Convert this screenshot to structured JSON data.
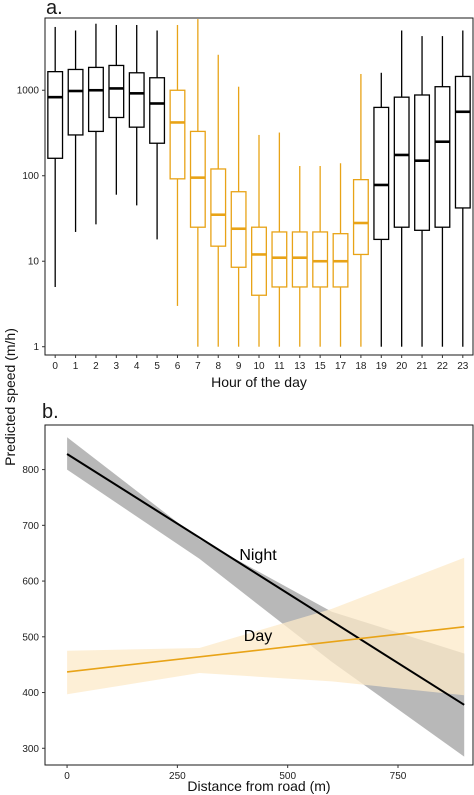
{
  "shared": {
    "ylabel": "Predicted speed (m/h)"
  },
  "chart_data": [
    {
      "panel": "a.",
      "type": "box",
      "xlabel": "Hour of the day",
      "yscale": "log",
      "ylim": [
        0.8,
        7000
      ],
      "yticks": [
        1,
        10,
        100,
        1000
      ],
      "ytick_labels": [
        "1",
        "10",
        "100",
        "1000"
      ],
      "colors": {
        "night": "#000000",
        "day": "#E8A317"
      },
      "boxes": [
        {
          "hour": "0",
          "period": "night",
          "min": 5,
          "q1": 160,
          "median": 830,
          "q3": 1650,
          "max": 5500
        },
        {
          "hour": "1",
          "period": "night",
          "min": 22,
          "q1": 300,
          "median": 980,
          "q3": 1750,
          "max": 5000
        },
        {
          "hour": "2",
          "period": "night",
          "min": 27,
          "q1": 330,
          "median": 1000,
          "q3": 1850,
          "max": 6000
        },
        {
          "hour": "3",
          "period": "night",
          "min": 60,
          "q1": 480,
          "median": 1050,
          "q3": 1950,
          "max": 5800
        },
        {
          "hour": "4",
          "period": "night",
          "min": 45,
          "q1": 370,
          "median": 920,
          "q3": 1600,
          "max": 5800
        },
        {
          "hour": "5",
          "period": "night",
          "min": 18,
          "q1": 240,
          "median": 700,
          "q3": 1400,
          "max": 5000
        },
        {
          "hour": "6",
          "period": "day",
          "min": 3,
          "q1": 92,
          "median": 420,
          "q3": 1000,
          "max": 5800
        },
        {
          "hour": "7",
          "period": "day",
          "min": 1,
          "q1": 25,
          "median": 95,
          "q3": 330,
          "max": 6800
        },
        {
          "hour": "8",
          "period": "day",
          "min": 1,
          "q1": 15,
          "median": 35,
          "q3": 120,
          "max": 2600
        },
        {
          "hour": "9",
          "period": "day",
          "min": 1,
          "q1": 8.5,
          "median": 24,
          "q3": 65,
          "max": 1100
        },
        {
          "hour": "10",
          "period": "day",
          "min": 1,
          "q1": 4,
          "median": 12,
          "q3": 25,
          "max": 300
        },
        {
          "hour": "11",
          "period": "day",
          "min": 1,
          "q1": 5,
          "median": 11,
          "q3": 22,
          "max": 320
        },
        {
          "hour": "13",
          "period": "day",
          "min": 1,
          "q1": 5,
          "median": 11,
          "q3": 22,
          "max": 130
        },
        {
          "hour": "15",
          "period": "day",
          "min": 1,
          "q1": 5,
          "median": 10,
          "q3": 22,
          "max": 130
        },
        {
          "hour": "17",
          "period": "day",
          "min": 1,
          "q1": 5,
          "median": 10,
          "q3": 21,
          "max": 140
        },
        {
          "hour": "18",
          "period": "day",
          "min": 1,
          "q1": 12,
          "median": 28,
          "q3": 90,
          "max": 1550
        },
        {
          "hour": "19",
          "period": "night",
          "min": 1,
          "q1": 18,
          "median": 78,
          "q3": 630,
          "max": 1600
        },
        {
          "hour": "20",
          "period": "night",
          "min": 1,
          "q1": 25,
          "median": 175,
          "q3": 830,
          "max": 5000
        },
        {
          "hour": "21",
          "period": "night",
          "min": 1,
          "q1": 23,
          "median": 150,
          "q3": 880,
          "max": 4300
        },
        {
          "hour": "22",
          "period": "night",
          "min": 1,
          "q1": 25,
          "median": 250,
          "q3": 1100,
          "max": 4300
        },
        {
          "hour": "23",
          "period": "night",
          "min": 1,
          "q1": 42,
          "median": 560,
          "q3": 1450,
          "max": 5000
        }
      ]
    },
    {
      "panel": "b.",
      "type": "line",
      "xlabel": "Distance from road (m)",
      "xlim": [
        -50,
        920
      ],
      "ylim": [
        270,
        880
      ],
      "xticks": [
        0,
        250,
        500,
        750
      ],
      "xtick_labels": [
        "0",
        "250",
        "500",
        "750"
      ],
      "yticks": [
        300,
        400,
        500,
        600,
        700,
        800
      ],
      "ytick_labels": [
        "300",
        "400",
        "500",
        "600",
        "700",
        "800"
      ],
      "grid": false,
      "series": [
        {
          "name": "Night",
          "line_color": "#000000",
          "band_color": "#a6a6a6",
          "x": [
            0,
            900
          ],
          "y": [
            828,
            378
          ],
          "ci_x": [
            0,
            300,
            600,
            900
          ],
          "ci_lower": [
            800,
            640,
            455,
            285
          ],
          "ci_upper": [
            858,
            675,
            545,
            470
          ]
        },
        {
          "name": "Day",
          "line_color": "#E8A317",
          "band_color": "#fce9c8",
          "x": [
            0,
            900
          ],
          "y": [
            437,
            518
          ],
          "ci_x": [
            0,
            300,
            600,
            900
          ],
          "ci_lower": [
            397,
            435,
            420,
            395
          ],
          "ci_upper": [
            475,
            480,
            550,
            642
          ]
        }
      ]
    }
  ]
}
